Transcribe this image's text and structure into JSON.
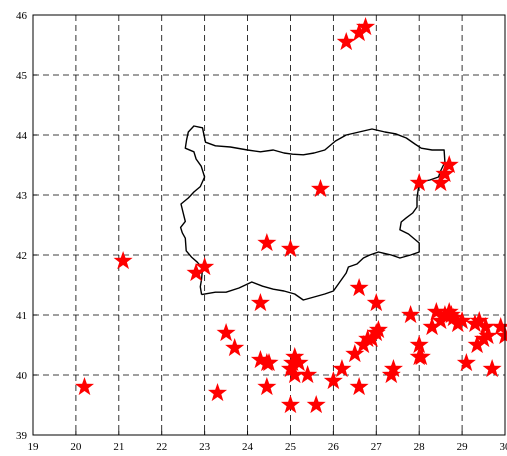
{
  "chart_data": {
    "type": "scatter",
    "title": "",
    "xlabel": "",
    "ylabel": "",
    "xlim": [
      19,
      30
    ],
    "ylim": [
      39,
      46
    ],
    "xticks": [
      "19",
      "20",
      "21",
      "22",
      "23",
      "24",
      "25",
      "26",
      "27",
      "28",
      "29",
      "30"
    ],
    "yticks": [
      "39",
      "40",
      "41",
      "42",
      "43",
      "44",
      "45",
      "46"
    ],
    "grid": true,
    "marker": "star",
    "marker_color": "#ff0000",
    "line_color": "#000000",
    "border_outline": {
      "name": "Bulgaria border",
      "points": [
        [
          22.93,
          41.34
        ],
        [
          22.9,
          41.47
        ],
        [
          22.93,
          41.6
        ],
        [
          22.95,
          41.78
        ],
        [
          22.83,
          41.88
        ],
        [
          22.7,
          41.96
        ],
        [
          22.57,
          42.07
        ],
        [
          22.55,
          42.28
        ],
        [
          22.48,
          42.37
        ],
        [
          22.44,
          42.46
        ],
        [
          22.55,
          42.56
        ],
        [
          22.5,
          42.7
        ],
        [
          22.45,
          42.85
        ],
        [
          22.62,
          42.95
        ],
        [
          22.75,
          43.05
        ],
        [
          22.9,
          43.14
        ],
        [
          23.0,
          43.3
        ],
        [
          22.92,
          43.48
        ],
        [
          22.8,
          43.6
        ],
        [
          22.75,
          43.72
        ],
        [
          22.55,
          43.78
        ],
        [
          22.58,
          43.92
        ],
        [
          22.62,
          44.05
        ],
        [
          22.75,
          44.15
        ],
        [
          22.95,
          44.12
        ],
        [
          23.02,
          43.88
        ],
        [
          23.25,
          43.82
        ],
        [
          23.6,
          43.8
        ],
        [
          24.0,
          43.75
        ],
        [
          24.3,
          43.72
        ],
        [
          24.6,
          43.75
        ],
        [
          24.85,
          43.7
        ],
        [
          25.05,
          43.68
        ],
        [
          25.3,
          43.67
        ],
        [
          25.55,
          43.7
        ],
        [
          25.8,
          43.75
        ],
        [
          26.05,
          43.9
        ],
        [
          26.3,
          44.0
        ],
        [
          26.6,
          44.05
        ],
        [
          26.9,
          44.1
        ],
        [
          27.2,
          44.05
        ],
        [
          27.45,
          44.02
        ],
        [
          27.7,
          43.95
        ],
        [
          27.9,
          43.85
        ],
        [
          28.05,
          43.78
        ],
        [
          28.3,
          43.75
        ],
        [
          28.58,
          43.75
        ],
        [
          28.6,
          43.55
        ],
        [
          28.5,
          43.4
        ],
        [
          28.45,
          43.3
        ],
        [
          28.25,
          43.25
        ],
        [
          28.05,
          43.22
        ],
        [
          27.98,
          43.1
        ],
        [
          27.95,
          42.95
        ],
        [
          27.95,
          42.8
        ],
        [
          27.85,
          42.7
        ],
        [
          27.7,
          42.62
        ],
        [
          27.58,
          42.55
        ],
        [
          27.55,
          42.42
        ],
        [
          27.75,
          42.35
        ],
        [
          28.0,
          42.2
        ],
        [
          28.0,
          42.05
        ],
        [
          27.8,
          42.0
        ],
        [
          27.55,
          41.95
        ],
        [
          27.35,
          42.0
        ],
        [
          27.05,
          42.05
        ],
        [
          26.85,
          42.0
        ],
        [
          26.7,
          41.95
        ],
        [
          26.55,
          41.85
        ],
        [
          26.35,
          41.8
        ],
        [
          26.3,
          41.7
        ],
        [
          26.15,
          41.55
        ],
        [
          26.0,
          41.4
        ],
        [
          25.8,
          41.35
        ],
        [
          25.55,
          41.3
        ],
        [
          25.3,
          41.25
        ],
        [
          25.1,
          41.35
        ],
        [
          24.85,
          41.4
        ],
        [
          24.6,
          41.43
        ],
        [
          24.35,
          41.48
        ],
        [
          24.1,
          41.55
        ],
        [
          23.8,
          41.45
        ],
        [
          23.5,
          41.38
        ],
        [
          23.25,
          41.38
        ],
        [
          22.93,
          41.34
        ]
      ]
    },
    "series": [
      {
        "x": [
          26.3,
          26.6,
          26.75,
          20.2,
          21.1,
          22.8,
          23.0,
          23.3,
          23.5,
          23.7,
          24.3,
          24.3,
          24.45,
          24.45,
          24.45,
          24.5,
          25.0,
          25.0,
          25.0,
          25.05,
          25.1,
          25.1,
          25.2,
          25.4,
          25.6,
          25.7,
          26.0,
          26.2,
          26.5,
          26.6,
          26.6,
          26.7,
          26.8,
          26.9,
          27.0,
          27.0,
          27.05,
          27.35,
          27.4,
          27.8,
          28.0,
          28.0,
          28.0,
          28.05,
          28.3,
          28.4,
          28.5,
          28.6,
          28.7,
          28.75,
          28.8,
          28.5,
          28.6,
          28.7,
          28.9,
          29.0,
          29.1,
          29.3,
          29.35,
          29.4,
          29.5,
          29.55,
          29.6,
          29.7,
          29.9,
          30.0
        ],
        "y": [
          45.55,
          45.7,
          45.8,
          39.8,
          41.9,
          41.7,
          41.8,
          39.7,
          40.7,
          40.45,
          41.2,
          40.25,
          40.2,
          39.8,
          42.2,
          40.2,
          42.1,
          40.1,
          39.5,
          40.2,
          40.3,
          40.0,
          40.2,
          40.0,
          39.5,
          43.1,
          39.9,
          40.1,
          40.35,
          39.8,
          41.45,
          40.5,
          40.6,
          40.6,
          41.2,
          40.7,
          40.75,
          40.0,
          40.1,
          41.0,
          40.3,
          40.5,
          43.2,
          40.3,
          40.8,
          41.05,
          43.2,
          43.35,
          43.5,
          41.0,
          40.95,
          40.9,
          41.0,
          41.05,
          40.85,
          40.9,
          40.2,
          40.85,
          40.5,
          40.9,
          40.6,
          40.8,
          40.65,
          40.1,
          40.8,
          40.65
        ]
      }
    ]
  }
}
